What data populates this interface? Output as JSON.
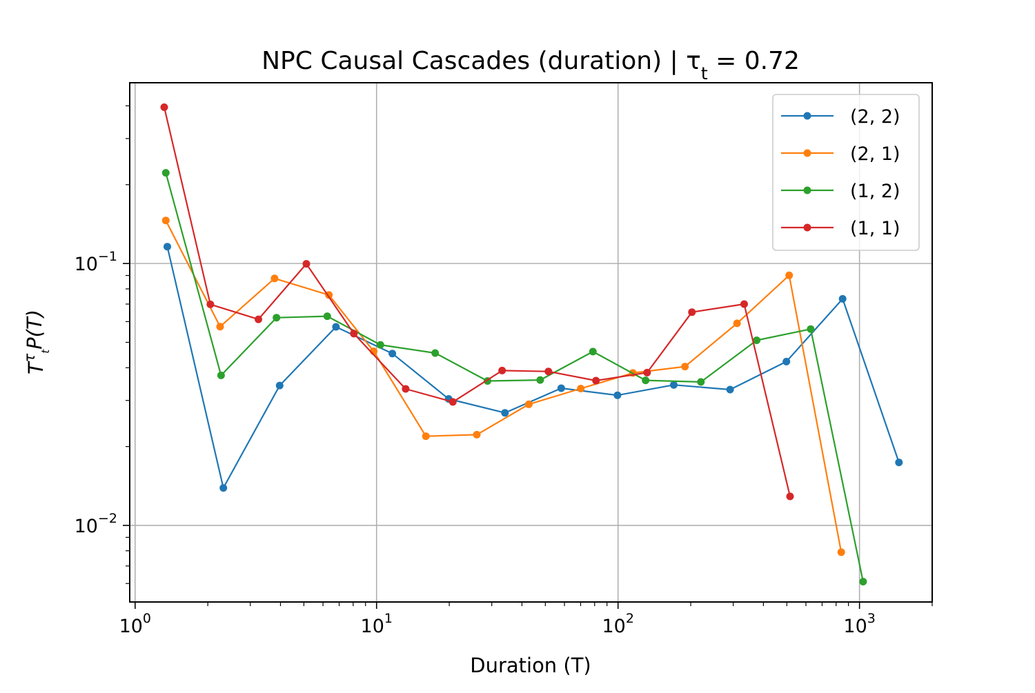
{
  "chart_data": {
    "type": "line",
    "title": "NPC Causal Cascades (duration) | τ",
    "title_subscript": "t",
    "title_suffix": " = 0.72",
    "xlabel": "Duration (T)",
    "ylabel_main": "T",
    "ylabel_sup": "τ",
    "ylabel_sup_sub": "t",
    "ylabel_rest": "P(T)",
    "x_scale": "log",
    "y_scale": "log",
    "xlim": [
      0.95,
      2000
    ],
    "ylim": [
      0.0051,
      0.49
    ],
    "grid": true,
    "legend_position": "top-right",
    "x_ticks": [
      {
        "value": 1,
        "base": "10",
        "exp": "0"
      },
      {
        "value": 10,
        "base": "10",
        "exp": "1"
      },
      {
        "value": 100,
        "base": "10",
        "exp": "2"
      },
      {
        "value": 1000,
        "base": "10",
        "exp": "3"
      }
    ],
    "y_ticks": [
      {
        "value": 0.01,
        "base": "10",
        "exp": "−2"
      },
      {
        "value": 0.1,
        "base": "10",
        "exp": "−1"
      }
    ],
    "series": [
      {
        "name": "(2, 2)",
        "color": "#1f77b4",
        "x": [
          1.36,
          2.32,
          3.97,
          6.79,
          11.62,
          19.88,
          34.01,
          58.17,
          99.5,
          170.2,
          291.1,
          497.9,
          851.6,
          1456.6
        ],
        "y": [
          0.116,
          0.0139,
          0.0342,
          0.0573,
          0.0453,
          0.0304,
          0.0269,
          0.0334,
          0.0314,
          0.0344,
          0.033,
          0.0422,
          0.0733,
          0.0174
        ]
      },
      {
        "name": "(2, 1)",
        "color": "#ff7f0e",
        "x": [
          1.34,
          2.25,
          3.78,
          6.35,
          9.73,
          16.0,
          26.0,
          42.7,
          70.1,
          115.2,
          189.3,
          311.2,
          511.3,
          840.3
        ],
        "y": [
          0.146,
          0.0574,
          0.0877,
          0.0758,
          0.0462,
          0.0219,
          0.0222,
          0.029,
          0.0333,
          0.0382,
          0.0404,
          0.0591,
          0.0901,
          0.0079
        ]
      },
      {
        "name": "(1, 2)",
        "color": "#2ca02c",
        "x": [
          1.34,
          2.27,
          3.85,
          6.25,
          10.37,
          17.49,
          28.8,
          47.6,
          78.7,
          130.1,
          220.4,
          375.1,
          627.6,
          1035.0
        ],
        "y": [
          0.222,
          0.0374,
          0.0621,
          0.0629,
          0.0489,
          0.0455,
          0.0356,
          0.0359,
          0.0461,
          0.0358,
          0.0353,
          0.0509,
          0.0562,
          0.0061
        ]
      },
      {
        "name": "(1, 1)",
        "color": "#d62728",
        "x": [
          1.32,
          2.05,
          3.24,
          5.12,
          8.05,
          13.2,
          20.7,
          33.1,
          51.5,
          81.0,
          131.9,
          202.3,
          333.0,
          515.8
        ],
        "y": [
          0.395,
          0.0698,
          0.0612,
          0.0997,
          0.054,
          0.0332,
          0.0296,
          0.039,
          0.0387,
          0.0357,
          0.0383,
          0.0652,
          0.07,
          0.0129
        ]
      }
    ]
  }
}
